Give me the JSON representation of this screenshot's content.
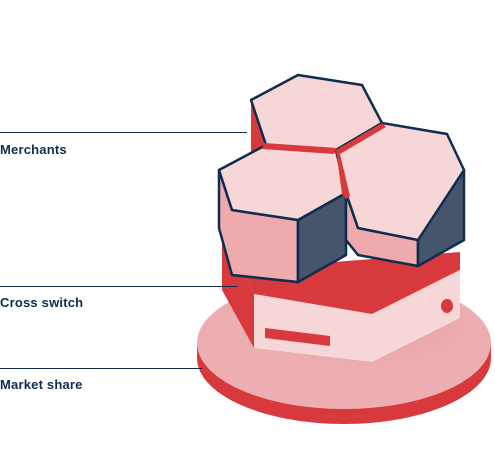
{
  "labels": {
    "merchants": "Merchants",
    "cross_switch": "Cross switch",
    "market_share": "Market share"
  },
  "colors": {
    "navy": "#0f2d4e",
    "red": "#d8393c",
    "pink_light": "#f6d6d7",
    "pink_mid": "#eeaaac",
    "slate": "#45566c",
    "disc_top": "#ecaeb0",
    "disc_side": "#d8393c"
  },
  "icons": {
    "illustration": "stacked-hexagon-platform-icon"
  }
}
